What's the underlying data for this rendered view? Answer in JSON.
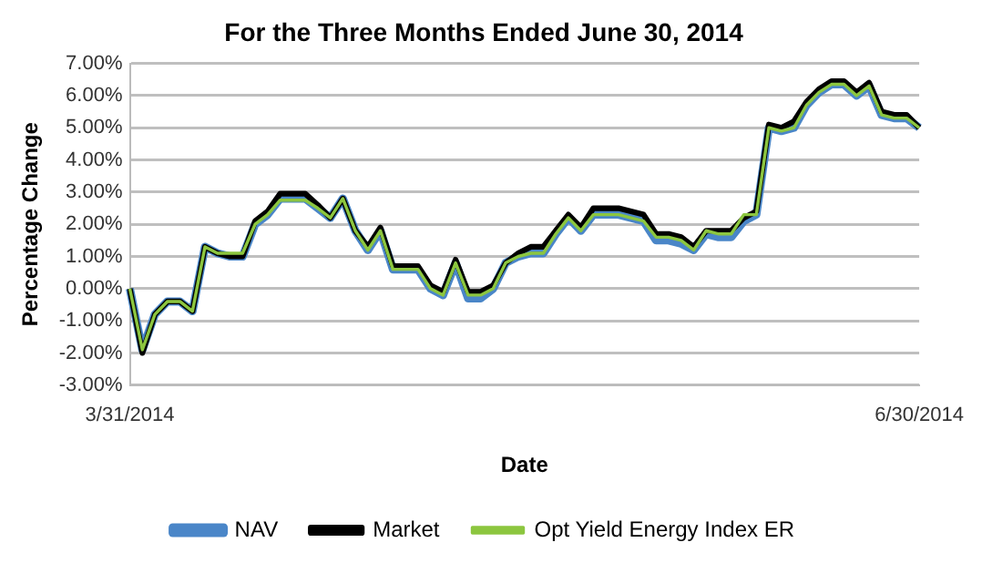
{
  "chart_data": {
    "type": "line",
    "title": "For the Three Months Ended June 30, 2014",
    "xlabel": "Date",
    "ylabel": "Percentage Change",
    "categories": [
      "3/31/2014",
      null,
      null,
      null,
      null,
      null,
      null,
      null,
      null,
      null,
      null,
      null,
      null,
      null,
      null,
      null,
      null,
      null,
      null,
      null,
      null,
      null,
      null,
      null,
      null,
      null,
      null,
      null,
      null,
      null,
      null,
      null,
      null,
      null,
      null,
      null,
      null,
      null,
      null,
      null,
      null,
      null,
      null,
      null,
      null,
      null,
      null,
      null,
      null,
      null,
      null,
      null,
      null,
      null,
      null,
      null,
      null,
      null,
      null,
      null,
      null,
      null,
      null,
      "6/30/2014"
    ],
    "series": [
      {
        "name": "NAV",
        "color": "#4a86c8",
        "values": [
          0,
          -1.9,
          -0.8,
          -0.4,
          -0.4,
          -0.7,
          1.3,
          1.1,
          1.0,
          1.0,
          2.0,
          2.3,
          2.8,
          2.8,
          2.8,
          2.5,
          2.2,
          2.8,
          1.8,
          1.2,
          1.8,
          0.6,
          0.6,
          0.6,
          0.0,
          -0.2,
          0.8,
          -0.3,
          -0.3,
          0.0,
          0.8,
          1.0,
          1.1,
          1.1,
          1.7,
          2.2,
          1.8,
          2.3,
          2.3,
          2.3,
          2.2,
          2.1,
          1.5,
          1.5,
          1.4,
          1.2,
          1.7,
          1.6,
          1.6,
          2.1,
          2.3,
          5.0,
          4.9,
          5.0,
          5.7,
          6.1,
          6.35,
          6.35,
          6.0,
          6.3,
          5.4,
          5.3,
          5.3,
          5.0
        ]
      },
      {
        "name": "Market",
        "color": "#000000",
        "values": [
          0,
          -2.0,
          -0.8,
          -0.4,
          -0.4,
          -0.7,
          1.3,
          1.1,
          1.0,
          1.0,
          2.1,
          2.4,
          2.95,
          2.95,
          2.95,
          2.6,
          2.2,
          2.8,
          1.8,
          1.3,
          1.9,
          0.7,
          0.7,
          0.7,
          0.1,
          -0.1,
          0.9,
          -0.1,
          -0.1,
          0.1,
          0.8,
          1.1,
          1.3,
          1.3,
          1.8,
          2.3,
          1.9,
          2.5,
          2.5,
          2.5,
          2.4,
          2.3,
          1.7,
          1.7,
          1.6,
          1.3,
          1.8,
          1.8,
          1.8,
          2.2,
          2.4,
          5.1,
          5.0,
          5.2,
          5.8,
          6.2,
          6.45,
          6.45,
          6.1,
          6.4,
          5.5,
          5.4,
          5.4,
          5.0
        ]
      },
      {
        "name": "Opt Yield Energy Index ER",
        "color": "#8cc63f",
        "values": [
          0,
          -1.9,
          -0.8,
          -0.4,
          -0.4,
          -0.7,
          1.3,
          1.1,
          1.1,
          1.1,
          2.0,
          2.3,
          2.75,
          2.75,
          2.75,
          2.5,
          2.2,
          2.8,
          1.8,
          1.2,
          1.8,
          0.6,
          0.6,
          0.6,
          0.0,
          -0.2,
          0.8,
          -0.2,
          -0.2,
          0.0,
          0.8,
          1.0,
          1.1,
          1.1,
          1.7,
          2.2,
          1.8,
          2.3,
          2.3,
          2.3,
          2.2,
          2.1,
          1.6,
          1.6,
          1.5,
          1.2,
          1.8,
          1.7,
          1.7,
          2.3,
          2.3,
          5.0,
          4.9,
          5.0,
          5.7,
          6.1,
          6.35,
          6.35,
          6.0,
          6.3,
          5.4,
          5.3,
          5.3,
          5.0
        ]
      }
    ],
    "ylim": [
      -3,
      7
    ],
    "yticks": [
      {
        "value": -3,
        "label": "-3.00%"
      },
      {
        "value": -2,
        "label": "-2.00%"
      },
      {
        "value": -1,
        "label": "-1.00%"
      },
      {
        "value": 0,
        "label": "0.00%"
      },
      {
        "value": 1,
        "label": "1.00%"
      },
      {
        "value": 2,
        "label": "2.00%"
      },
      {
        "value": 3,
        "label": "3.00%"
      },
      {
        "value": 4,
        "label": "4.00%"
      },
      {
        "value": 5,
        "label": "5.00%"
      },
      {
        "value": 6,
        "label": "6.00%"
      },
      {
        "value": 7,
        "label": "7.00%"
      }
    ],
    "grid": "y",
    "legend": "bottom",
    "marker": "none",
    "line_style": "solid"
  }
}
